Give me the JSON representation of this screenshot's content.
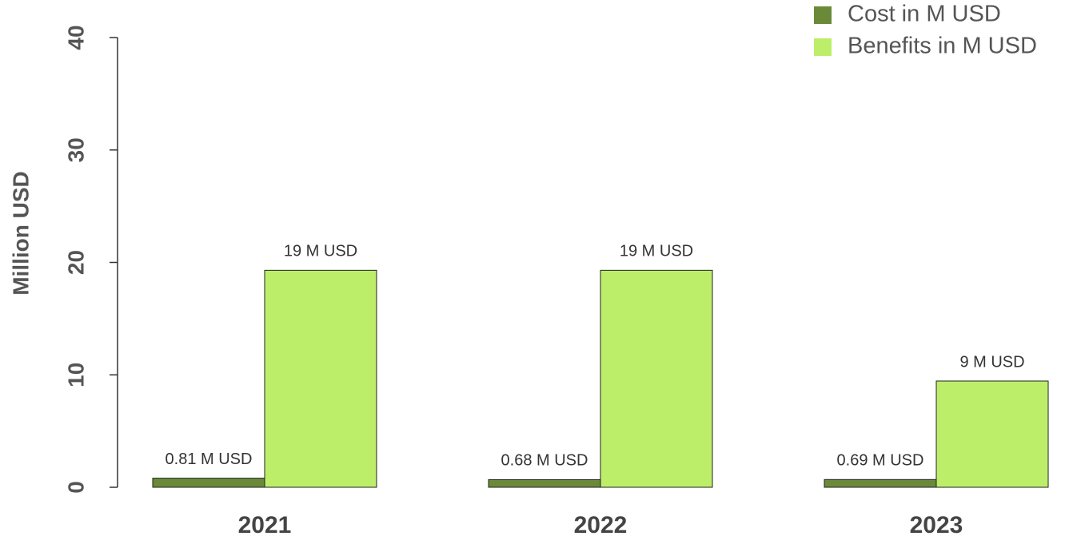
{
  "chart_data": {
    "type": "bar",
    "y_label": "Million USD",
    "categories": [
      "2021",
      "2022",
      "2023"
    ],
    "series": [
      {
        "name": "Cost in M USD",
        "color": "#6a8a3a",
        "values": [
          0.81,
          0.68,
          0.69
        ],
        "value_labels": [
          "0.81 M USD",
          "0.68 M USD",
          "0.69 M USD"
        ]
      },
      {
        "name": "Benefits in M USD",
        "color": "#bdee6a",
        "values": [
          19.3,
          19.3,
          9.45
        ],
        "value_labels": [
          "19 M USD",
          "19 M USD",
          "9 M USD"
        ]
      }
    ],
    "ylim": [
      0,
      40
    ],
    "yticks": [
      0,
      10,
      20,
      30,
      40
    ],
    "legend": "top-right"
  }
}
